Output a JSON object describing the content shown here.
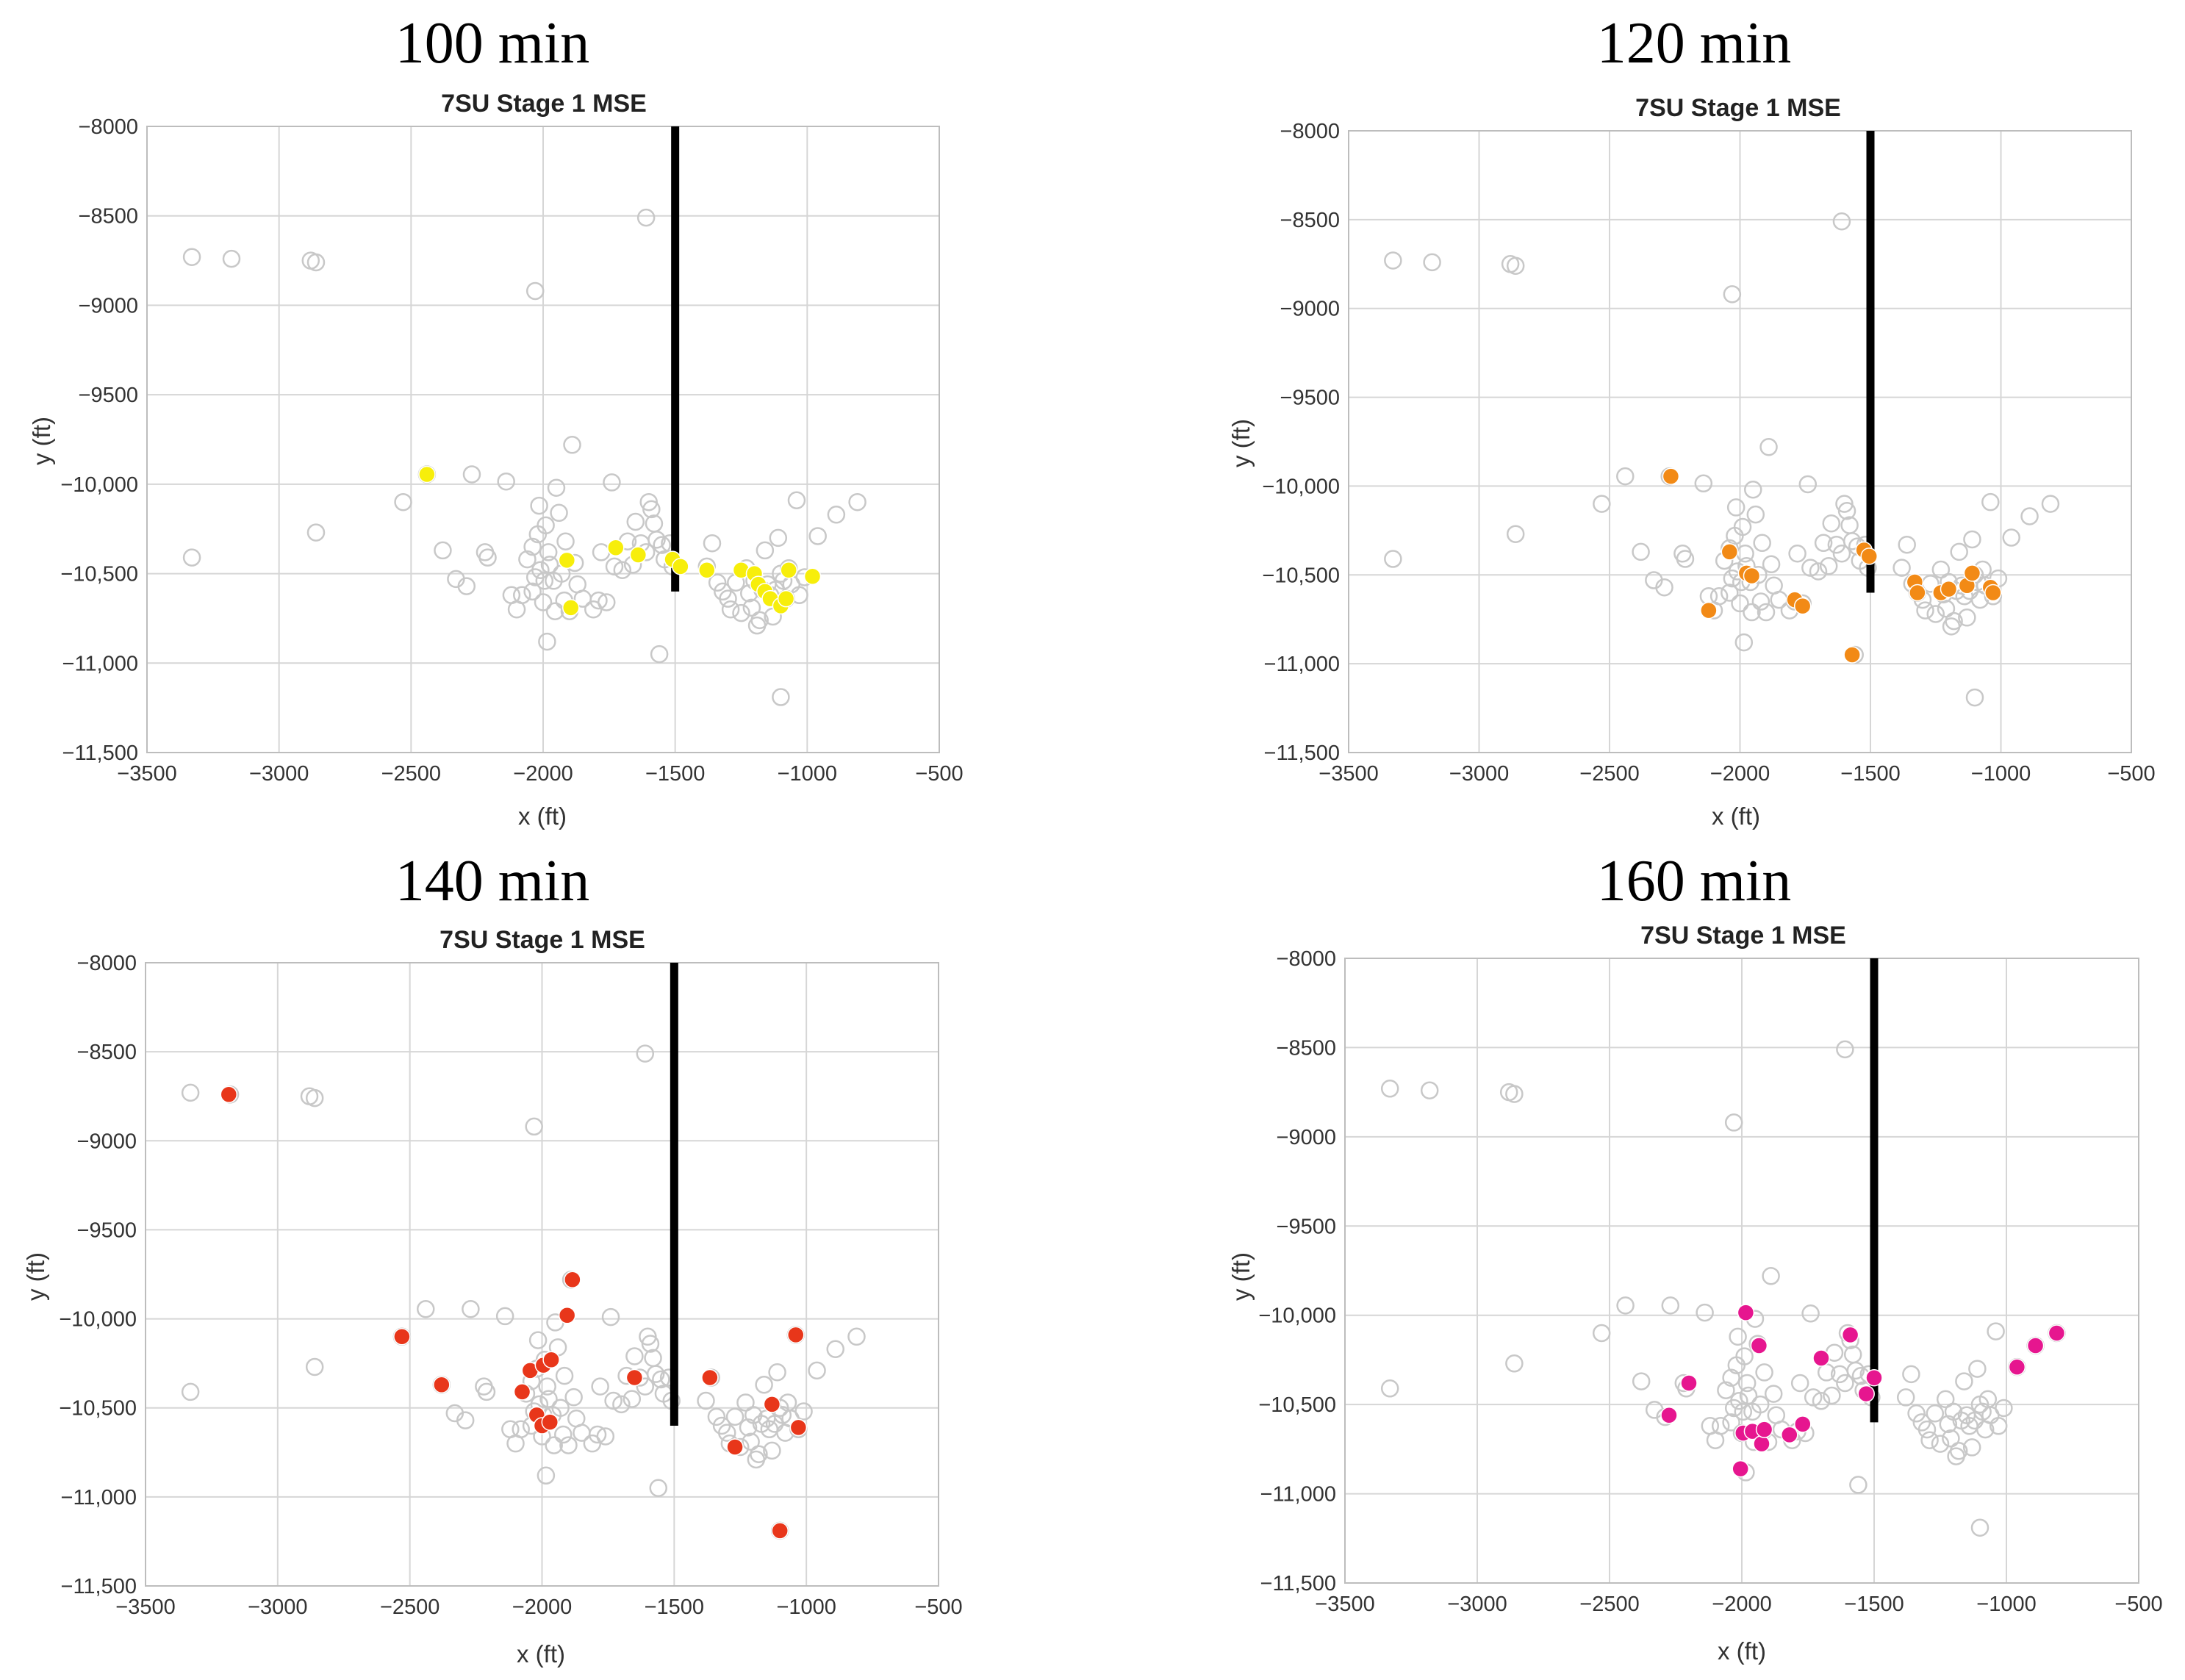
{
  "chart_data": [
    {
      "type": "scatter",
      "panel_label": "100 min",
      "title": "7SU Stage 1 MSE",
      "xlabel": "x (ft)",
      "ylabel": "y (ft)",
      "xlim": [
        -3500,
        -500
      ],
      "ylim": [
        -11500,
        -8000
      ],
      "x_ticks": [
        -3500,
        -3000,
        -2500,
        -2000,
        -1500,
        -1000,
        -500
      ],
      "x_tick_labels": [
        "−3500",
        "−3000",
        "−2500",
        "−2000",
        "−1500",
        "−1000",
        "−500"
      ],
      "y_ticks": [
        -8000,
        -8500,
        -9000,
        -9500,
        -10000,
        -10500,
        -11000,
        -11500
      ],
      "y_tick_labels": [
        "−8000",
        "−8500",
        "−9000",
        "−9500",
        "−10,000",
        "−10,500",
        "−11,000",
        "−11,500"
      ],
      "highlight_color": "#f7ee0b",
      "highlight_points": [
        [
          -2440,
          -9945
        ],
        [
          -1910,
          -10425
        ],
        [
          -1895,
          -10690
        ],
        [
          -1725,
          -10355
        ],
        [
          -1640,
          -10395
        ],
        [
          -1510,
          -10420
        ],
        [
          -1480,
          -10460
        ],
        [
          -1380,
          -10480
        ],
        [
          -1250,
          -10480
        ],
        [
          -1200,
          -10500
        ],
        [
          -1185,
          -10560
        ],
        [
          -1160,
          -10600
        ],
        [
          -1140,
          -10640
        ],
        [
          -1100,
          -10680
        ],
        [
          -1080,
          -10640
        ],
        [
          -1070,
          -10480
        ],
        [
          -980,
          -10515
        ]
      ]
    },
    {
      "type": "scatter",
      "panel_label": "120 min",
      "title": "7SU Stage 1 MSE",
      "xlabel": "x (ft)",
      "ylabel": "y (ft)",
      "xlim": [
        -3500,
        -500
      ],
      "ylim": [
        -11500,
        -8000
      ],
      "x_ticks": [
        -3500,
        -3000,
        -2500,
        -2000,
        -1500,
        -1000,
        -500
      ],
      "x_tick_labels": [
        "−3500",
        "−3000",
        "−2500",
        "−2000",
        "−1500",
        "−1000",
        "−500"
      ],
      "y_ticks": [
        -8000,
        -8500,
        -9000,
        -9500,
        -10000,
        -10500,
        -11000,
        -11500
      ],
      "y_tick_labels": [
        "−8000",
        "−8500",
        "−9000",
        "−9500",
        "−10,000",
        "−10,500",
        "−11,000",
        "−11,500"
      ],
      "highlight_color": "#f28a16",
      "highlight_points": [
        [
          -2265,
          -9945
        ],
        [
          -2120,
          -10700
        ],
        [
          -2040,
          -10370
        ],
        [
          -1975,
          -10490
        ],
        [
          -1955,
          -10505
        ],
        [
          -1790,
          -10640
        ],
        [
          -1760,
          -10675
        ],
        [
          -1570,
          -10950
        ],
        [
          -1525,
          -10360
        ],
        [
          -1505,
          -10395
        ],
        [
          -1330,
          -10540
        ],
        [
          -1320,
          -10600
        ],
        [
          -1230,
          -10600
        ],
        [
          -1200,
          -10580
        ],
        [
          -1130,
          -10560
        ],
        [
          -1110,
          -10490
        ],
        [
          -1040,
          -10570
        ],
        [
          -1030,
          -10600
        ]
      ]
    },
    {
      "type": "scatter",
      "panel_label": "140 min",
      "title": "7SU Stage 1 MSE",
      "xlabel": "x (ft)",
      "ylabel": "y (ft)",
      "xlim": [
        -3500,
        -500
      ],
      "ylim": [
        -11500,
        -8000
      ],
      "x_ticks": [
        -3500,
        -3000,
        -2500,
        -2000,
        -1500,
        -1000,
        -500
      ],
      "x_tick_labels": [
        "−3500",
        "−3000",
        "−2500",
        "−2000",
        "−1500",
        "−1000",
        "−500"
      ],
      "y_ticks": [
        -8000,
        -8500,
        -9000,
        -9500,
        -10000,
        -10500,
        -11000,
        -11500
      ],
      "y_tick_labels": [
        "−8000",
        "−8500",
        "−9000",
        "−9500",
        "−10,000",
        "−10,500",
        "−11,000",
        "−11,500"
      ],
      "highlight_color": "#e8361a",
      "highlight_points": [
        [
          -3185,
          -8740
        ],
        [
          -2530,
          -10100
        ],
        [
          -2380,
          -10370
        ],
        [
          -2075,
          -10410
        ],
        [
          -2045,
          -10290
        ],
        [
          -2020,
          -10540
        ],
        [
          -2000,
          -10600
        ],
        [
          -1995,
          -10260
        ],
        [
          -1970,
          -10580
        ],
        [
          -1965,
          -10230
        ],
        [
          -1905,
          -9980
        ],
        [
          -1885,
          -9780
        ],
        [
          -1650,
          -10330
        ],
        [
          -1365,
          -10330
        ],
        [
          -1270,
          -10720
        ],
        [
          -1130,
          -10480
        ],
        [
          -1100,
          -11190
        ],
        [
          -1040,
          -10090
        ],
        [
          -1030,
          -10610
        ]
      ]
    },
    {
      "type": "scatter",
      "panel_label": "160 min",
      "title": "7SU Stage 1 MSE",
      "xlabel": "x (ft)",
      "ylabel": "y (ft)",
      "xlim": [
        -3500,
        -500
      ],
      "ylim": [
        -11500,
        -8000
      ],
      "x_ticks": [
        -3500,
        -3000,
        -2500,
        -2000,
        -1500,
        -1000,
        -500
      ],
      "x_tick_labels": [
        "−3500",
        "−3000",
        "−2500",
        "−2000",
        "−1500",
        "−1000",
        "−500"
      ],
      "y_ticks": [
        -8000,
        -8500,
        -9000,
        -9500,
        -10000,
        -10500,
        -11000,
        -11500
      ],
      "y_tick_labels": [
        "−8000",
        "−8500",
        "−9000",
        "−9500",
        "−10,000",
        "−10,500",
        "−11,000",
        "−11,500"
      ],
      "highlight_color": "#e6168f",
      "highlight_points": [
        [
          -2275,
          -10560
        ],
        [
          -2200,
          -10380
        ],
        [
          -2005,
          -10860
        ],
        [
          -1995,
          -10660
        ],
        [
          -1985,
          -9985
        ],
        [
          -1960,
          -10650
        ],
        [
          -1935,
          -10170
        ],
        [
          -1925,
          -10720
        ],
        [
          -1915,
          -10640
        ],
        [
          -1820,
          -10670
        ],
        [
          -1770,
          -10610
        ],
        [
          -1700,
          -10240
        ],
        [
          -1590,
          -10110
        ],
        [
          -1530,
          -10440
        ],
        [
          -1500,
          -10350
        ],
        [
          -960,
          -10290
        ],
        [
          -890,
          -10170
        ],
        [
          -810,
          -10100
        ]
      ]
    }
  ],
  "background_events": [
    [
      -3330,
      -8730
    ],
    [
      -3180,
      -8740
    ],
    [
      -2880,
      -8750
    ],
    [
      -2860,
      -8760
    ],
    [
      -2030,
      -8920
    ],
    [
      -1610,
      -8510
    ],
    [
      -3330,
      -10410
    ],
    [
      -2860,
      -10270
    ],
    [
      -2530,
      -10100
    ],
    [
      -2440,
      -9945
    ],
    [
      -2380,
      -10370
    ],
    [
      -2330,
      -10530
    ],
    [
      -2290,
      -10570
    ],
    [
      -2270,
      -9945
    ],
    [
      -2220,
      -10380
    ],
    [
      -2210,
      -10410
    ],
    [
      -2140,
      -9985
    ],
    [
      -2120,
      -10620
    ],
    [
      -2100,
      -10700
    ],
    [
      -2080,
      -10620
    ],
    [
      -2060,
      -10420
    ],
    [
      -2040,
      -10350
    ],
    [
      -2040,
      -10600
    ],
    [
      -2030,
      -10520
    ],
    [
      -2020,
      -10280
    ],
    [
      -2015,
      -10120
    ],
    [
      -2010,
      -10480
    ],
    [
      -2000,
      -10660
    ],
    [
      -1995,
      -10540
    ],
    [
      -1990,
      -10230
    ],
    [
      -1985,
      -10880
    ],
    [
      -1980,
      -10380
    ],
    [
      -1975,
      -10450
    ],
    [
      -1960,
      -10540
    ],
    [
      -1955,
      -10710
    ],
    [
      -1950,
      -10020
    ],
    [
      -1940,
      -10160
    ],
    [
      -1930,
      -10500
    ],
    [
      -1920,
      -10650
    ],
    [
      -1915,
      -10320
    ],
    [
      -1900,
      -10710
    ],
    [
      -1890,
      -9780
    ],
    [
      -1880,
      -10440
    ],
    [
      -1870,
      -10560
    ],
    [
      -1850,
      -10640
    ],
    [
      -1810,
      -10700
    ],
    [
      -1790,
      -10650
    ],
    [
      -1780,
      -10380
    ],
    [
      -1760,
      -10660
    ],
    [
      -1740,
      -9990
    ],
    [
      -1730,
      -10460
    ],
    [
      -1700,
      -10480
    ],
    [
      -1680,
      -10320
    ],
    [
      -1660,
      -10450
    ],
    [
      -1650,
      -10210
    ],
    [
      -1630,
      -10330
    ],
    [
      -1610,
      -10380
    ],
    [
      -1600,
      -10100
    ],
    [
      -1590,
      -10140
    ],
    [
      -1580,
      -10220
    ],
    [
      -1570,
      -10310
    ],
    [
      -1560,
      -10950
    ],
    [
      -1550,
      -10340
    ],
    [
      -1540,
      -10420
    ],
    [
      -1520,
      -10330
    ],
    [
      -1510,
      -10460
    ],
    [
      -1380,
      -10460
    ],
    [
      -1360,
      -10330
    ],
    [
      -1340,
      -10550
    ],
    [
      -1320,
      -10600
    ],
    [
      -1300,
      -10640
    ],
    [
      -1290,
      -10700
    ],
    [
      -1270,
      -10550
    ],
    [
      -1250,
      -10720
    ],
    [
      -1230,
      -10470
    ],
    [
      -1220,
      -10610
    ],
    [
      -1210,
      -10690
    ],
    [
      -1200,
      -10540
    ],
    [
      -1190,
      -10790
    ],
    [
      -1180,
      -10760
    ],
    [
      -1170,
      -10590
    ],
    [
      -1160,
      -10370
    ],
    [
      -1150,
      -10560
    ],
    [
      -1140,
      -10620
    ],
    [
      -1130,
      -10740
    ],
    [
      -1120,
      -10590
    ],
    [
      -1110,
      -10300
    ],
    [
      -1100,
      -10500
    ],
    [
      -1090,
      -10540
    ],
    [
      -1080,
      -10640
    ],
    [
      -1070,
      -10470
    ],
    [
      -1060,
      -10560
    ],
    [
      -1040,
      -10090
    ],
    [
      -1030,
      -10620
    ],
    [
      -1010,
      -10520
    ],
    [
      -960,
      -10290
    ],
    [
      -890,
      -10170
    ],
    [
      -810,
      -10100
    ],
    [
      -1100,
      -11190
    ]
  ],
  "wellbore": {
    "x": -1500,
    "y_from": -8000,
    "y_to": -10600
  }
}
